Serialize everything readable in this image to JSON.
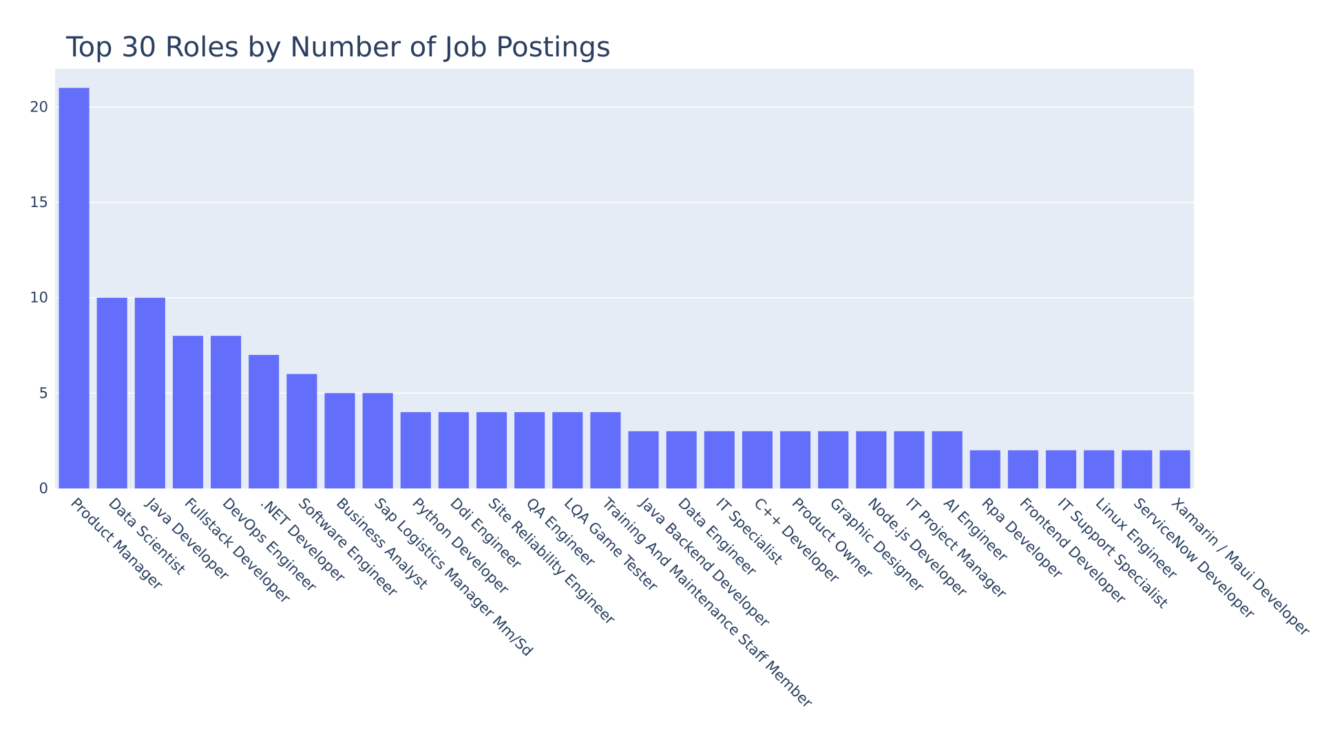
{
  "chart_data": {
    "type": "bar",
    "title": "Top 30 Roles by Number of Job Postings",
    "xlabel": "",
    "ylabel": "",
    "ylim": [
      0,
      22
    ],
    "yticks": [
      0,
      5,
      10,
      15,
      20
    ],
    "grid": true,
    "bar_color": "#636efa",
    "plot_bg": "#e5ecf6",
    "categories": [
      "Product Manager",
      "Data Scientist",
      "Java Developer",
      "Fullstack Developer",
      "DevOps Engineer",
      ".NET Developer",
      "Software Engineer",
      "Business Analyst",
      "Sap Logistics Manager Mm/Sd",
      "Python Developer",
      "Ddi Engineer",
      "Site Reliability Engineer",
      "QA Engineer",
      "LQA Game Tester",
      "Training And Maintenance Staff Member",
      "Java Backend Developer",
      "Data Engineer",
      "IT Specialist",
      "C++ Developer",
      "Product Owner",
      "Graphic Designer",
      "Node.js Developer",
      "IT Project Manager",
      "AI Engineer",
      "Rpa Developer",
      "Frontend Developer",
      "IT Support Specialist",
      "Linux Engineer",
      "ServiceNow Developer",
      "Xamarin / Maui Developer"
    ],
    "values": [
      21,
      10,
      10,
      8,
      8,
      7,
      6,
      5,
      5,
      4,
      4,
      4,
      4,
      4,
      4,
      3,
      3,
      3,
      3,
      3,
      3,
      3,
      3,
      3,
      2,
      2,
      2,
      2,
      2,
      2
    ]
  }
}
